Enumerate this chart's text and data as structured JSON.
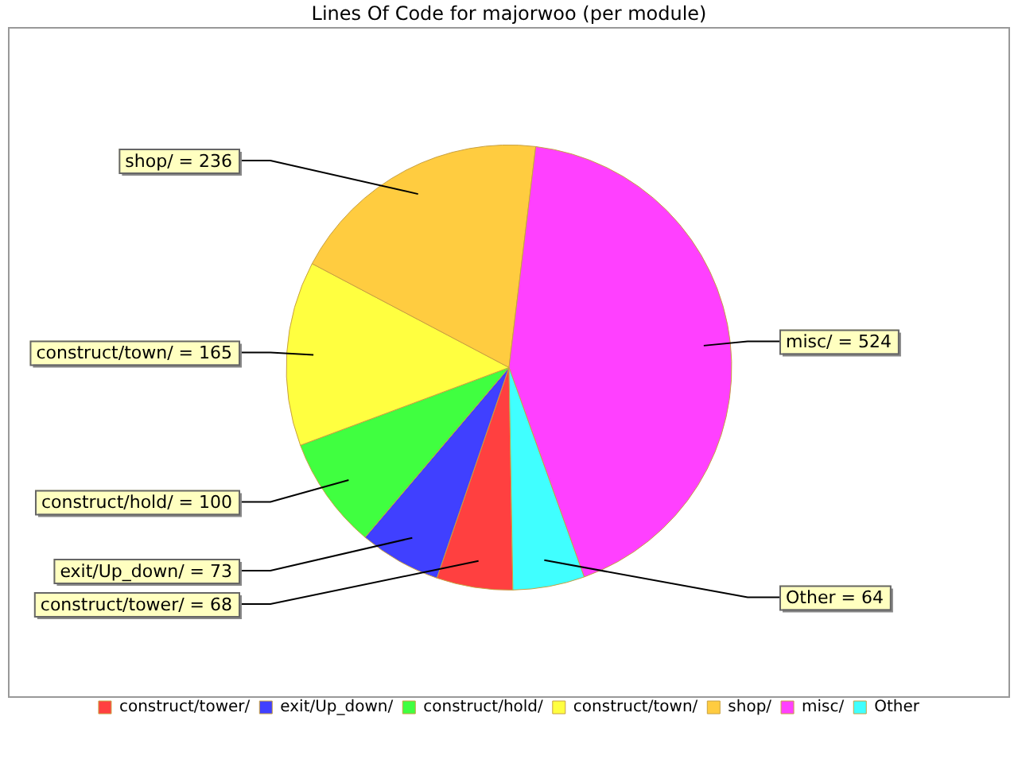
{
  "chart_data": {
    "type": "pie",
    "title": "Lines Of Code for majorwoo (per module)",
    "categories": [
      "construct/tower/",
      "exit/Up_down/",
      "construct/hold/",
      "construct/town/",
      "shop/",
      "misc/",
      "Other"
    ],
    "values": [
      68,
      73,
      100,
      165,
      236,
      524,
      64
    ],
    "colors": [
      "#ff4040",
      "#4040ff",
      "#40ff40",
      "#ffff40",
      "#ffcc40",
      "#ff40ff",
      "#40ffff"
    ],
    "value_labels": [
      "= 68",
      "= 73",
      "= 100",
      "= 165",
      "= 236",
      "= 524",
      "= 64"
    ],
    "legend": "bottom"
  }
}
